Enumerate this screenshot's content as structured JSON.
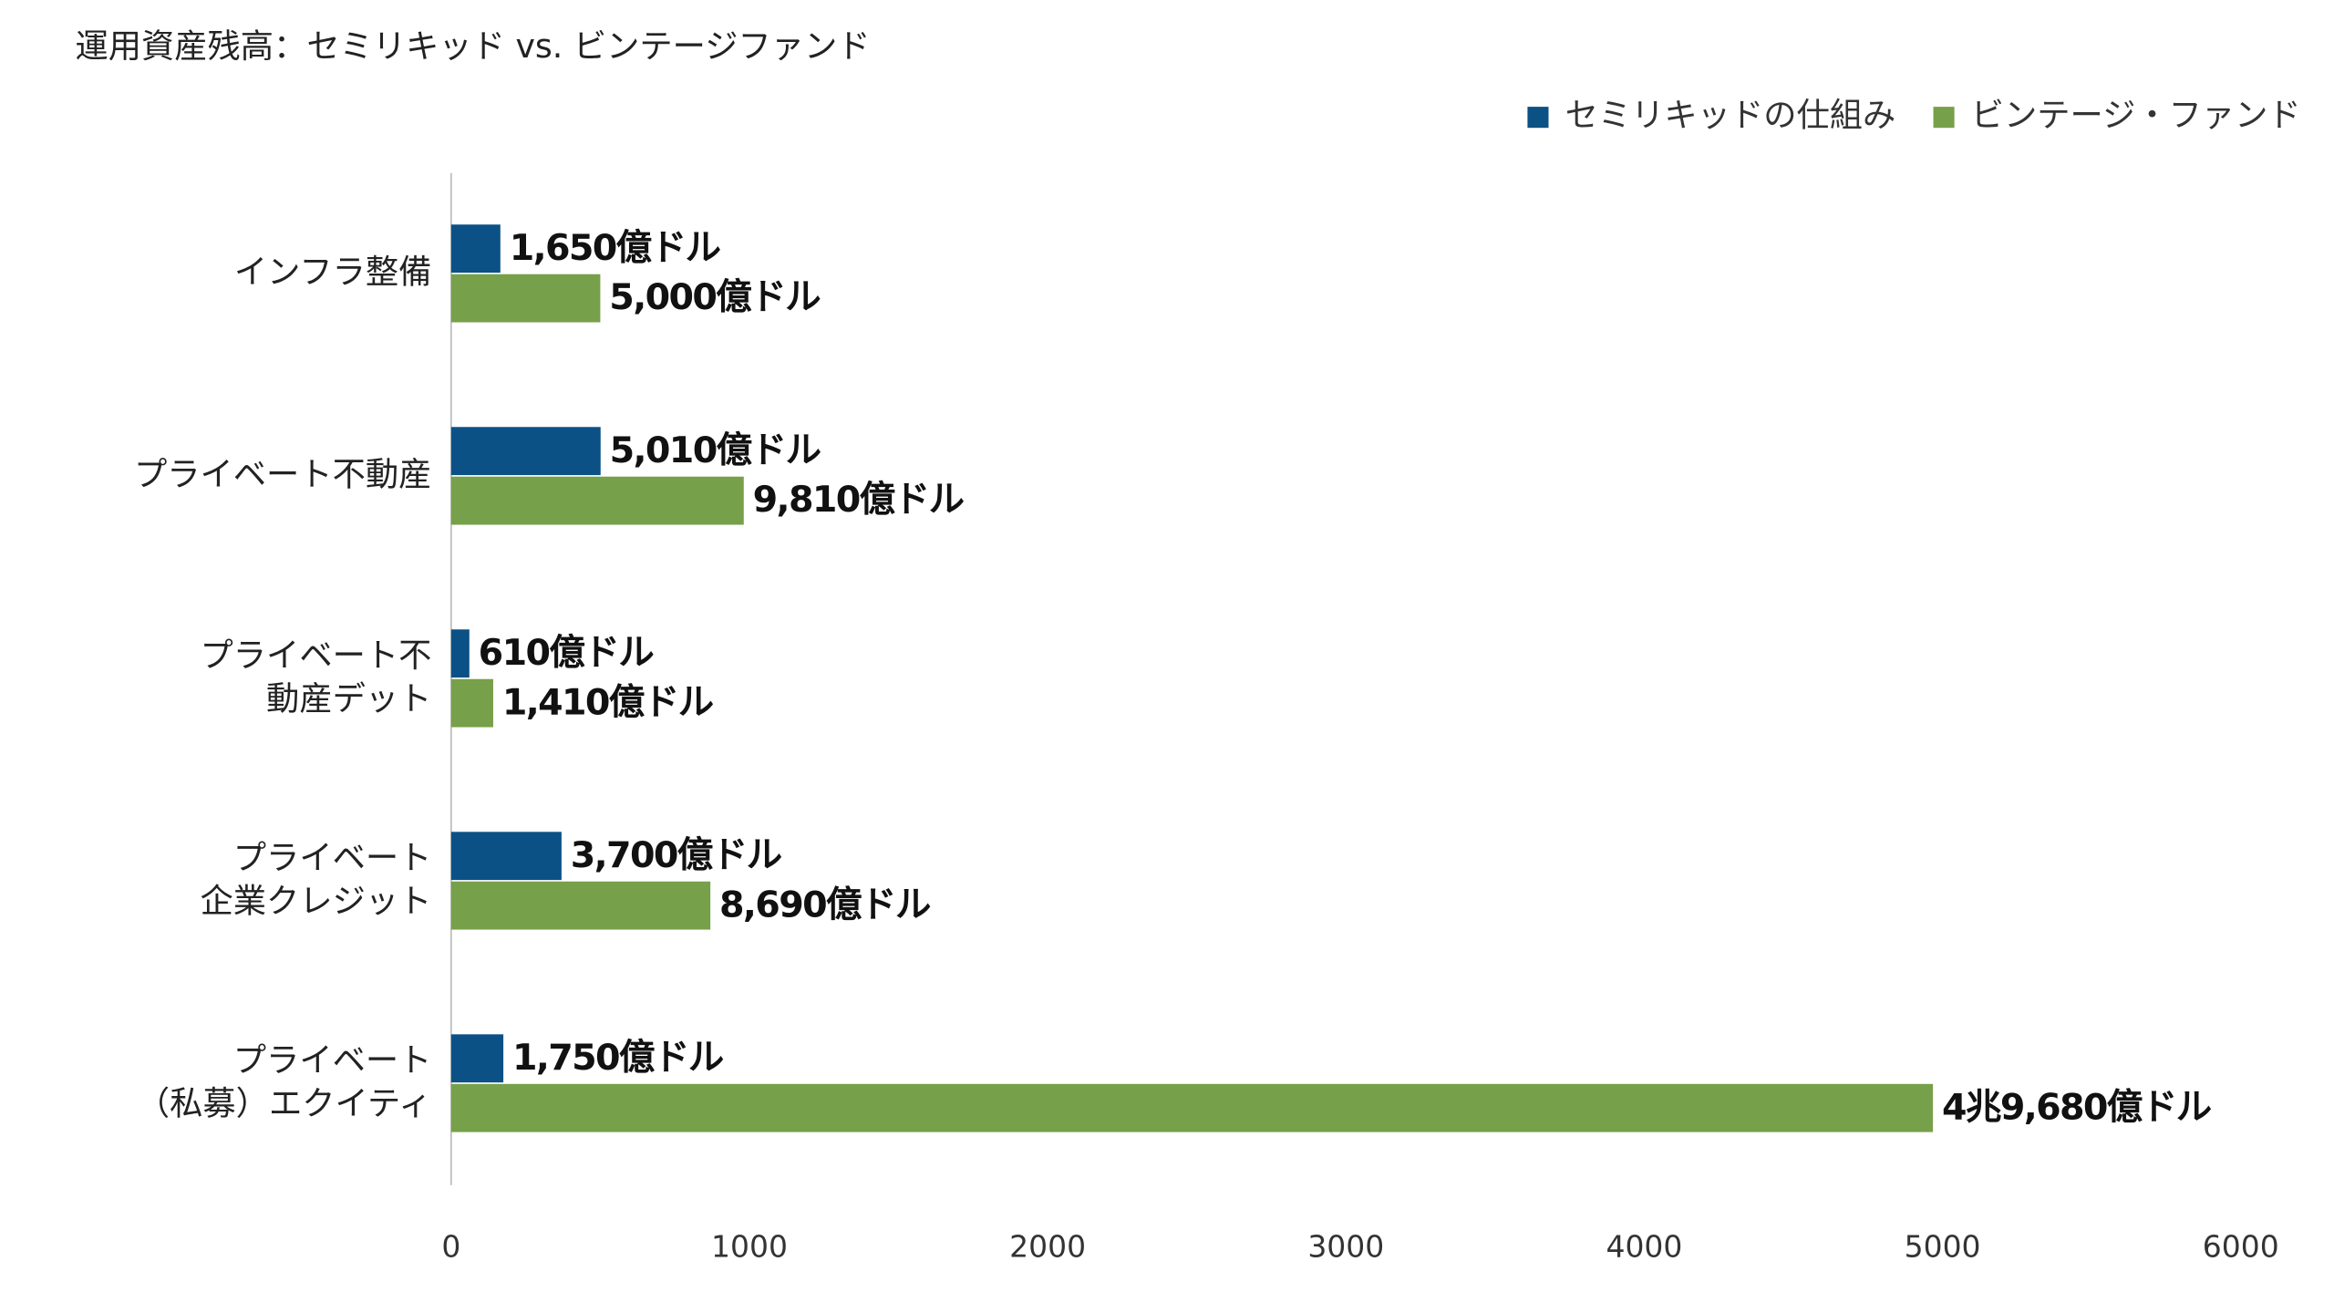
{
  "chart_data": {
    "type": "hbar",
    "title": "運用資産残高：セミリキッド vs. ビンテージファンド",
    "categories": [
      [
        "インフラ整備"
      ],
      [
        "プライベート不動産"
      ],
      [
        "プライベート不",
        "動産デット"
      ],
      [
        "プライベート",
        "企業クレジット"
      ],
      [
        "プライベート",
        "（私募）エクイティ"
      ]
    ],
    "series": [
      {
        "name": "セミリキッドの仕組み",
        "color": "#0b5185",
        "values": [
          165,
          501,
          61,
          370,
          175
        ],
        "value_labels": [
          "1,650億ドル",
          "5,010億ドル",
          "610億ドル",
          "3,700億ドル",
          "1,750億ドル"
        ]
      },
      {
        "name": "ビンテージ・ファンド",
        "color": "#77a04a",
        "values": [
          500,
          981,
          141,
          869,
          4968
        ],
        "value_labels": [
          "5,000億ドル",
          "9,810億ドル",
          "1,410億ドル",
          "8,690億ドル",
          "4兆9,680億ドル"
        ]
      }
    ],
    "xlim": [
      0,
      6000
    ],
    "xticks": [
      0,
      1000,
      2000,
      3000,
      4000,
      5000,
      6000
    ]
  }
}
